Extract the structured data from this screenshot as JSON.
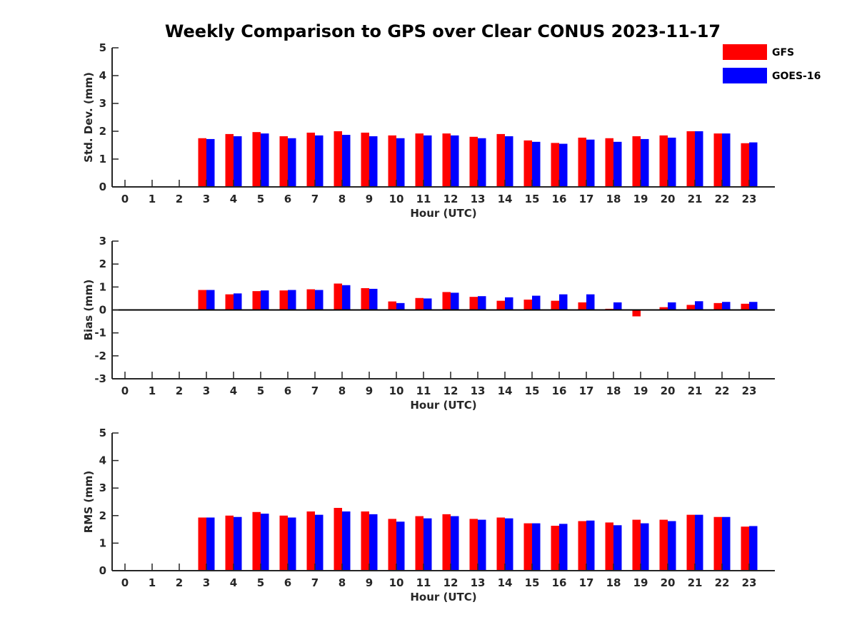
{
  "title": "Weekly Comparison to GPS over Clear CONUS 2023-11-17",
  "legend": [
    {
      "label": "GFS",
      "color": "#ff0000"
    },
    {
      "label": "GOES-16",
      "color": "#0000ff"
    }
  ],
  "chart_data": [
    {
      "type": "bar",
      "ylabel": "Std. Dev. (mm)",
      "xlabel": "Hour (UTC)",
      "ylim": [
        0,
        5
      ],
      "yticks": [
        0,
        1,
        2,
        3,
        4,
        5
      ],
      "categories": [
        "0",
        "1",
        "2",
        "3",
        "4",
        "5",
        "6",
        "7",
        "8",
        "9",
        "10",
        "11",
        "12",
        "13",
        "14",
        "15",
        "16",
        "17",
        "18",
        "19",
        "20",
        "21",
        "22",
        "23"
      ],
      "series": [
        {
          "name": "GFS",
          "values": [
            null,
            null,
            null,
            1.75,
            1.9,
            1.97,
            1.82,
            1.95,
            2.0,
            1.95,
            1.85,
            1.92,
            1.92,
            1.8,
            1.9,
            1.67,
            1.58,
            1.77,
            1.75,
            1.82,
            1.85,
            2.0,
            1.92,
            1.57
          ]
        },
        {
          "name": "GOES-16",
          "values": [
            null,
            null,
            null,
            1.72,
            1.82,
            1.92,
            1.75,
            1.85,
            1.87,
            1.82,
            1.75,
            1.85,
            1.85,
            1.75,
            1.82,
            1.62,
            1.55,
            1.7,
            1.62,
            1.72,
            1.77,
            2.0,
            1.92,
            1.6
          ]
        }
      ]
    },
    {
      "type": "bar",
      "ylabel": "Bias (mm)",
      "xlabel": "Hour (UTC)",
      "ylim": [
        -3,
        3
      ],
      "yticks": [
        -3,
        -2,
        -1,
        0,
        1,
        2,
        3
      ],
      "categories": [
        "0",
        "1",
        "2",
        "3",
        "4",
        "5",
        "6",
        "7",
        "8",
        "9",
        "10",
        "11",
        "12",
        "13",
        "14",
        "15",
        "16",
        "17",
        "18",
        "19",
        "20",
        "21",
        "22",
        "23"
      ],
      "series": [
        {
          "name": "GFS",
          "values": [
            null,
            null,
            null,
            0.87,
            0.68,
            0.82,
            0.85,
            0.9,
            1.15,
            0.95,
            0.37,
            0.52,
            0.78,
            0.57,
            0.4,
            0.45,
            0.4,
            0.33,
            0.05,
            -0.28,
            0.12,
            0.22,
            0.3,
            0.27
          ]
        },
        {
          "name": "GOES-16",
          "values": [
            null,
            null,
            null,
            0.87,
            0.72,
            0.85,
            0.87,
            0.87,
            1.08,
            0.92,
            0.3,
            0.5,
            0.75,
            0.6,
            0.55,
            0.62,
            0.68,
            0.68,
            0.33,
            0.0,
            0.33,
            0.38,
            0.35,
            0.35
          ]
        }
      ]
    },
    {
      "type": "bar",
      "ylabel": "RMS (mm)",
      "xlabel": "Hour (UTC)",
      "ylim": [
        0,
        5
      ],
      "yticks": [
        0,
        1,
        2,
        3,
        4,
        5
      ],
      "categories": [
        "0",
        "1",
        "2",
        "3",
        "4",
        "5",
        "6",
        "7",
        "8",
        "9",
        "10",
        "11",
        "12",
        "13",
        "14",
        "15",
        "16",
        "17",
        "18",
        "19",
        "20",
        "21",
        "22",
        "23"
      ],
      "series": [
        {
          "name": "GFS",
          "values": [
            null,
            null,
            null,
            1.93,
            2.0,
            2.13,
            2.0,
            2.15,
            2.28,
            2.15,
            1.88,
            1.98,
            2.05,
            1.88,
            1.93,
            1.72,
            1.63,
            1.8,
            1.75,
            1.85,
            1.85,
            2.03,
            1.95,
            1.6
          ]
        },
        {
          "name": "GOES-16",
          "values": [
            null,
            null,
            null,
            1.93,
            1.95,
            2.07,
            1.93,
            2.03,
            2.15,
            2.05,
            1.78,
            1.9,
            1.98,
            1.85,
            1.9,
            1.72,
            1.7,
            1.82,
            1.65,
            1.72,
            1.8,
            2.03,
            1.95,
            1.62
          ]
        }
      ]
    }
  ]
}
